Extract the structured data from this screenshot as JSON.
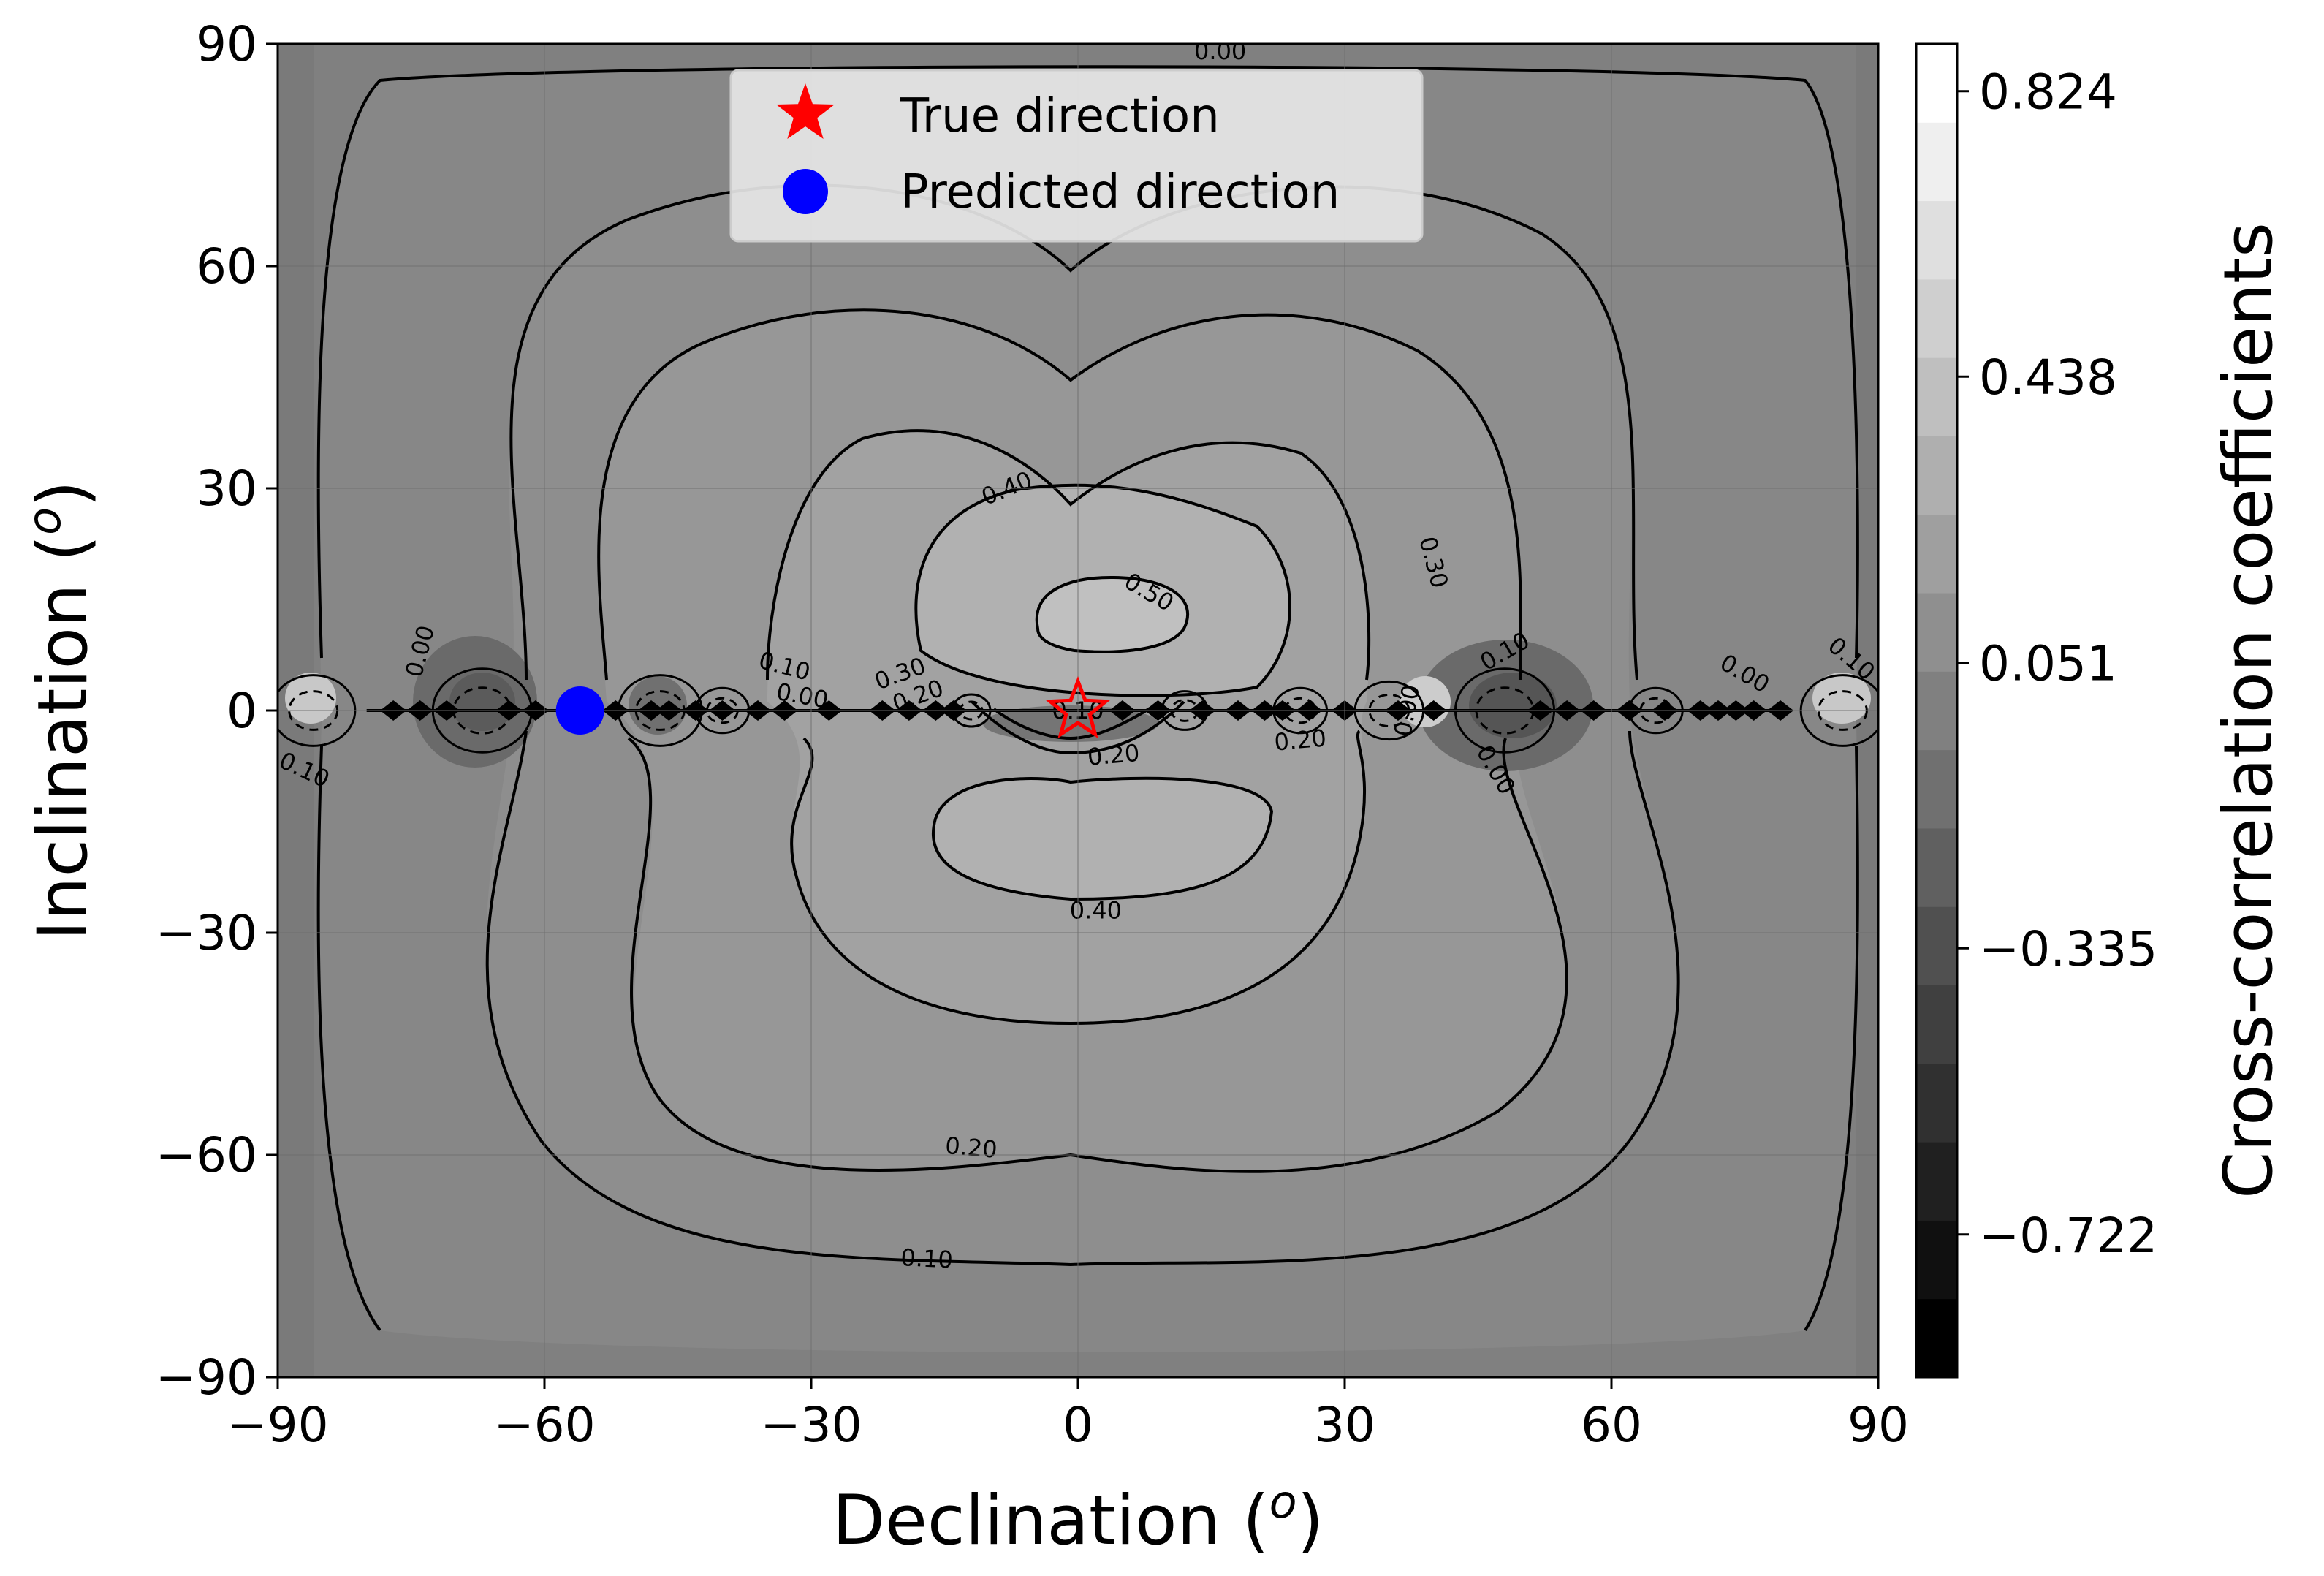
{
  "chart_data": {
    "type": "contour",
    "xlabel": "Declination (",
    "ylabel": "Inclination (",
    "unit_superscript": "o",
    "xlim": [
      -90,
      90
    ],
    "ylim": [
      -90,
      90
    ],
    "xticks": [
      -90,
      -60,
      -30,
      0,
      30,
      60,
      90
    ],
    "yticks": [
      -90,
      -60,
      -30,
      0,
      30,
      60,
      90
    ],
    "xtick_labels": [
      "−90",
      "−60",
      "−30",
      "0",
      "30",
      "60",
      "90"
    ],
    "ytick_labels": [
      "−90",
      "−60",
      "−30",
      "0",
      "30",
      "60",
      "90"
    ],
    "grid": true,
    "colorbar": {
      "label": "Cross-correlation coefficients",
      "min": -0.915,
      "max": 0.888,
      "levels": 17,
      "colormap": "gray",
      "ticks": [
        0.824,
        0.438,
        0.051,
        -0.335,
        -0.722
      ],
      "tick_labels": [
        "0.824",
        "0.438",
        "0.051",
        "−0.335",
        "−0.722"
      ]
    },
    "contour_levels": [
      0.0,
      0.1,
      0.2,
      0.3,
      0.4,
      0.5
    ],
    "contour_labels": [
      {
        "text": "0.00",
        "x": 16,
        "y": 89,
        "angle": 0
      },
      {
        "text": "0.30",
        "x": 40,
        "y": 20,
        "angle": 75
      },
      {
        "text": "0.40",
        "x": -8,
        "y": 30,
        "angle": -22
      },
      {
        "text": "0.50",
        "x": 8,
        "y": 16,
        "angle": 30
      },
      {
        "text": "0.40",
        "x": 2,
        "y": -27,
        "angle": 0
      },
      {
        "text": "0.20",
        "x": -12,
        "y": -59,
        "angle": 5
      },
      {
        "text": "0.10",
        "x": -17,
        "y": -74,
        "angle": 3
      },
      {
        "text": "0.20",
        "x": 4,
        "y": -6,
        "angle": -5
      },
      {
        "text": "0.20",
        "x": 25,
        "y": -4,
        "angle": -5
      },
      {
        "text": "0.00",
        "x": -74,
        "y": 8,
        "angle": -75
      },
      {
        "text": "0.10",
        "x": -87,
        "y": -8,
        "angle": 25
      },
      {
        "text": "0.10",
        "x": -33,
        "y": 6,
        "angle": 15
      },
      {
        "text": "0.00",
        "x": -31,
        "y": 2,
        "angle": 10
      },
      {
        "text": "0.30",
        "x": -20,
        "y": 5,
        "angle": -20
      },
      {
        "text": "0.20",
        "x": -18,
        "y": 2,
        "angle": -20
      },
      {
        "text": "0.10",
        "x": 0,
        "y": 0,
        "angle": 0
      },
      {
        "text": "0.10",
        "x": 0,
        "y": 0,
        "angle": 0
      },
      {
        "text": "0.00",
        "x": 37,
        "y": 0,
        "angle": -80
      },
      {
        "text": "0.10",
        "x": 48,
        "y": 8,
        "angle": -30
      },
      {
        "text": "0.00",
        "x": 47,
        "y": -8,
        "angle": 60
      },
      {
        "text": "0.00",
        "x": 75,
        "y": 5,
        "angle": 30
      },
      {
        "text": "0.10",
        "x": 87,
        "y": 7,
        "angle": 40
      }
    ],
    "legend": {
      "placement": "upper-center",
      "entries": [
        {
          "label": "True direction",
          "marker": "star",
          "color": "#ff0000"
        },
        {
          "label": "Predicted direction",
          "marker": "circle",
          "color": "#0000ff"
        }
      ]
    },
    "points": [
      {
        "name": "True direction",
        "x": 0,
        "y": 0
      },
      {
        "name": "Predicted direction",
        "x": -56,
        "y": 0
      }
    ]
  }
}
